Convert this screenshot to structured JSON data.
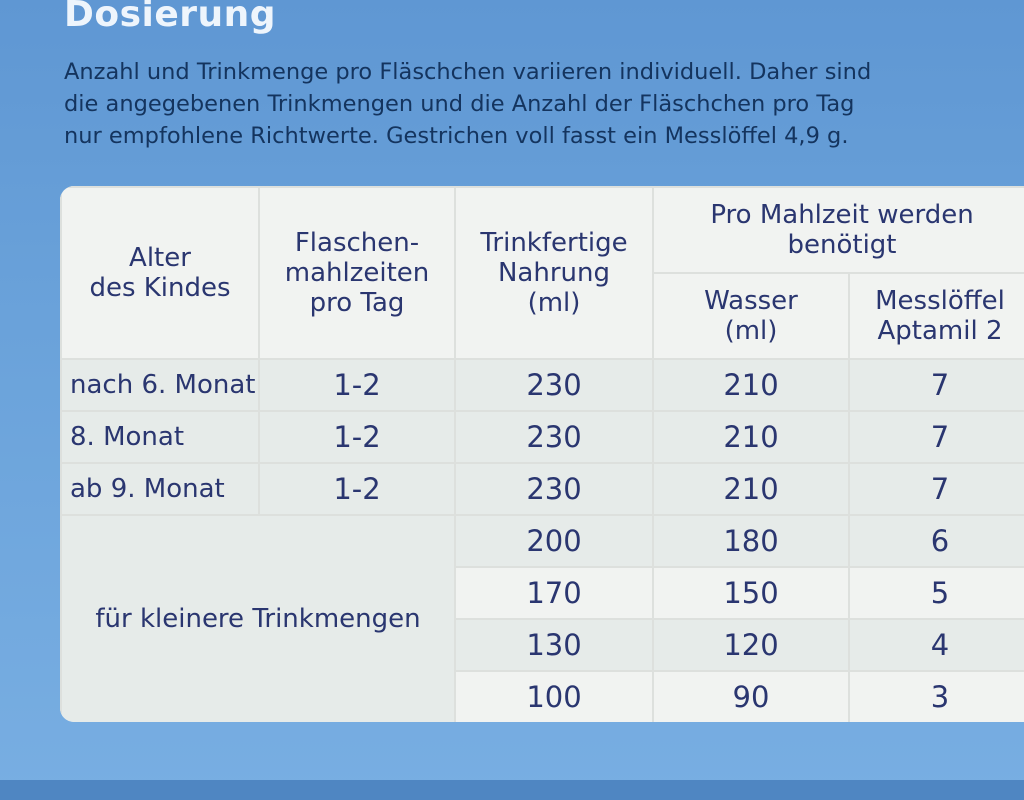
{
  "heading": "Dosierung",
  "intro_lines": [
    "Anzahl und Trinkmenge pro Fläschchen variieren individuell. Daher sind",
    "die angegebenen Trinkmengen und die Anzahl der Fläschchen pro Tag",
    "nur empfohlene Richtwerte. Gestrichen voll fasst ein Messlöffel 4,9 g."
  ],
  "table": {
    "headers": {
      "age": [
        "Alter",
        "des Kindes"
      ],
      "meals": [
        "Flaschen-",
        "mahlzeiten",
        "pro Tag"
      ],
      "ready": [
        "Trinkfertige",
        "Nahrung",
        "(ml)"
      ],
      "group": [
        "Pro Mahlzeit werden",
        "benötigt"
      ],
      "water": [
        "Wasser",
        "(ml)"
      ],
      "scoops": [
        "Messlöffel",
        "Aptamil 2"
      ]
    },
    "rows": [
      {
        "age": "nach 6. Monat",
        "meals": "1-2",
        "ready": "230",
        "water": "210",
        "scoops": "7"
      },
      {
        "age": "8. Monat",
        "meals": "1-2",
        "ready": "230",
        "water": "210",
        "scoops": "7"
      },
      {
        "age": "ab 9. Monat",
        "meals": "1-2",
        "ready": "230",
        "water": "210",
        "scoops": "7"
      }
    ],
    "small_label": "für kleinere Trinkmengen",
    "small_rows": [
      {
        "ready": "200",
        "water": "180",
        "scoops": "6"
      },
      {
        "ready": "170",
        "water": "150",
        "scoops": "5"
      },
      {
        "ready": "130",
        "water": "120",
        "scoops": "4"
      },
      {
        "ready": "100",
        "water": "90",
        "scoops": "3"
      }
    ]
  }
}
